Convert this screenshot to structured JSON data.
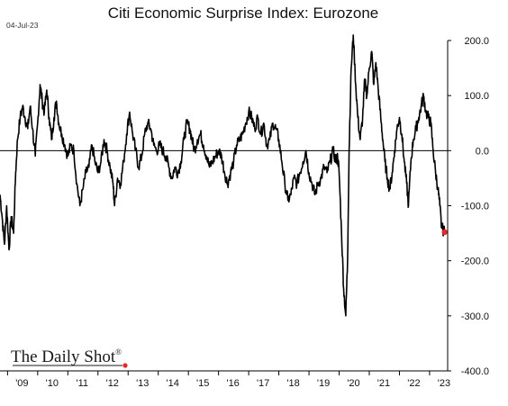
{
  "header": {
    "title": "Citi Economic Surprise Index: Eurozone",
    "date": "04-Jul-23"
  },
  "branding": {
    "logo_text": "The Daily Shot",
    "registered_mark": "®",
    "dot_color": "#e8262b"
  },
  "colors": {
    "line": "#000000",
    "zero_line": "#000000",
    "last_point": "#e8262b",
    "axis": "#000000"
  },
  "chart_data": {
    "type": "line",
    "title": "Citi Economic Surprise Index: Eurozone",
    "xlabel": "",
    "ylabel": "",
    "ylim": [
      -400,
      200
    ],
    "xlim": [
      2008.75,
      2023.6
    ],
    "y_ticks": [
      {
        "value": 200,
        "label": "200.0"
      },
      {
        "value": 100,
        "label": "100.0"
      },
      {
        "value": 0,
        "label": "0.0"
      },
      {
        "value": -100,
        "label": "-100.0"
      },
      {
        "value": -200,
        "label": "-200.0"
      },
      {
        "value": -300,
        "label": "-300.0"
      },
      {
        "value": -400,
        "label": "-400.0"
      }
    ],
    "x_ticks": [
      {
        "value": 2009,
        "label": "'09"
      },
      {
        "value": 2010,
        "label": "'10"
      },
      {
        "value": 2011,
        "label": "'11"
      },
      {
        "value": 2012,
        "label": "'12"
      },
      {
        "value": 2013,
        "label": "'13"
      },
      {
        "value": 2014,
        "label": "'14"
      },
      {
        "value": 2015,
        "label": "'15"
      },
      {
        "value": 2016,
        "label": "'16"
      },
      {
        "value": 2017,
        "label": "'17"
      },
      {
        "value": 2018,
        "label": "'18"
      },
      {
        "value": 2019,
        "label": "'19"
      },
      {
        "value": 2020,
        "label": "'20"
      },
      {
        "value": 2021,
        "label": "'21"
      },
      {
        "value": 2022,
        "label": "'22"
      },
      {
        "value": 2023,
        "label": "'23"
      }
    ],
    "grid": false,
    "zero_line": true,
    "series": [
      {
        "name": "",
        "points": [
          [
            2008.75,
            -80
          ],
          [
            2008.82,
            -120
          ],
          [
            2008.9,
            -170
          ],
          [
            2008.97,
            -100
          ],
          [
            2009.05,
            -180
          ],
          [
            2009.12,
            -120
          ],
          [
            2009.2,
            -150
          ],
          [
            2009.27,
            -40
          ],
          [
            2009.33,
            20
          ],
          [
            2009.42,
            60
          ],
          [
            2009.5,
            80
          ],
          [
            2009.58,
            60
          ],
          [
            2009.67,
            40
          ],
          [
            2009.75,
            80
          ],
          [
            2009.83,
            40
          ],
          [
            2009.92,
            -10
          ],
          [
            2010.0,
            50
          ],
          [
            2010.08,
            120
          ],
          [
            2010.15,
            90
          ],
          [
            2010.22,
            70
          ],
          [
            2010.3,
            110
          ],
          [
            2010.38,
            60
          ],
          [
            2010.46,
            20
          ],
          [
            2010.54,
            60
          ],
          [
            2010.62,
            90
          ],
          [
            2010.7,
            50
          ],
          [
            2010.8,
            30
          ],
          [
            2010.9,
            10
          ],
          [
            2011.0,
            -10
          ],
          [
            2011.1,
            10
          ],
          [
            2011.2,
            0
          ],
          [
            2011.3,
            -60
          ],
          [
            2011.4,
            -100
          ],
          [
            2011.5,
            -70
          ],
          [
            2011.6,
            -40
          ],
          [
            2011.7,
            -30
          ],
          [
            2011.8,
            10
          ],
          [
            2011.9,
            -20
          ],
          [
            2012.0,
            -40
          ],
          [
            2012.1,
            -20
          ],
          [
            2012.2,
            20
          ],
          [
            2012.3,
            0
          ],
          [
            2012.4,
            -30
          ],
          [
            2012.5,
            -60
          ],
          [
            2012.55,
            -100
          ],
          [
            2012.65,
            -50
          ],
          [
            2012.75,
            -60
          ],
          [
            2012.85,
            -20
          ],
          [
            2012.95,
            30
          ],
          [
            2013.05,
            70
          ],
          [
            2013.15,
            30
          ],
          [
            2013.25,
            0
          ],
          [
            2013.35,
            -30
          ],
          [
            2013.45,
            -10
          ],
          [
            2013.55,
            30
          ],
          [
            2013.65,
            50
          ],
          [
            2013.75,
            40
          ],
          [
            2013.85,
            10
          ],
          [
            2013.95,
            0
          ],
          [
            2014.05,
            10
          ],
          [
            2014.15,
            0
          ],
          [
            2014.25,
            -10
          ],
          [
            2014.35,
            -30
          ],
          [
            2014.45,
            -50
          ],
          [
            2014.55,
            -30
          ],
          [
            2014.65,
            -40
          ],
          [
            2014.75,
            -20
          ],
          [
            2014.85,
            20
          ],
          [
            2014.95,
            50
          ],
          [
            2015.05,
            40
          ],
          [
            2015.12,
            20
          ],
          [
            2015.2,
            0
          ],
          [
            2015.3,
            20
          ],
          [
            2015.4,
            30
          ],
          [
            2015.5,
            10
          ],
          [
            2015.6,
            -10
          ],
          [
            2015.7,
            -30
          ],
          [
            2015.8,
            -20
          ],
          [
            2015.9,
            -10
          ],
          [
            2016.0,
            0
          ],
          [
            2016.1,
            -10
          ],
          [
            2016.2,
            -40
          ],
          [
            2016.3,
            -60
          ],
          [
            2016.4,
            -40
          ],
          [
            2016.5,
            -20
          ],
          [
            2016.6,
            10
          ],
          [
            2016.7,
            20
          ],
          [
            2016.8,
            30
          ],
          [
            2016.9,
            50
          ],
          [
            2017.0,
            70
          ],
          [
            2017.1,
            60
          ],
          [
            2017.2,
            40
          ],
          [
            2017.3,
            60
          ],
          [
            2017.4,
            30
          ],
          [
            2017.5,
            50
          ],
          [
            2017.6,
            10
          ],
          [
            2017.7,
            20
          ],
          [
            2017.8,
            50
          ],
          [
            2017.9,
            40
          ],
          [
            2018.0,
            20
          ],
          [
            2018.1,
            -20
          ],
          [
            2018.2,
            -60
          ],
          [
            2018.3,
            -90
          ],
          [
            2018.4,
            -80
          ],
          [
            2018.5,
            -50
          ],
          [
            2018.6,
            -60
          ],
          [
            2018.7,
            -40
          ],
          [
            2018.8,
            -20
          ],
          [
            2018.9,
            0
          ],
          [
            2019.0,
            -40
          ],
          [
            2019.1,
            -60
          ],
          [
            2019.2,
            -80
          ],
          [
            2019.3,
            -60
          ],
          [
            2019.4,
            -50
          ],
          [
            2019.5,
            -30
          ],
          [
            2019.6,
            -40
          ],
          [
            2019.7,
            -20
          ],
          [
            2019.8,
            0
          ],
          [
            2019.9,
            -20
          ],
          [
            2019.95,
            -10
          ],
          [
            2020.0,
            -40
          ],
          [
            2020.08,
            -150
          ],
          [
            2020.15,
            -250
          ],
          [
            2020.22,
            -300
          ],
          [
            2020.28,
            -200
          ],
          [
            2020.33,
            0
          ],
          [
            2020.4,
            150
          ],
          [
            2020.47,
            210
          ],
          [
            2020.55,
            120
          ],
          [
            2020.62,
            60
          ],
          [
            2020.7,
            20
          ],
          [
            2020.78,
            60
          ],
          [
            2020.85,
            130
          ],
          [
            2020.92,
            100
          ],
          [
            2021.0,
            150
          ],
          [
            2021.08,
            180
          ],
          [
            2021.15,
            120
          ],
          [
            2021.22,
            160
          ],
          [
            2021.3,
            110
          ],
          [
            2021.38,
            60
          ],
          [
            2021.45,
            20
          ],
          [
            2021.52,
            -20
          ],
          [
            2021.6,
            -50
          ],
          [
            2021.68,
            -70
          ],
          [
            2021.76,
            -40
          ],
          [
            2021.84,
            0
          ],
          [
            2021.92,
            40
          ],
          [
            2022.0,
            60
          ],
          [
            2022.08,
            30
          ],
          [
            2022.16,
            -20
          ],
          [
            2022.24,
            -60
          ],
          [
            2022.3,
            -100
          ],
          [
            2022.38,
            -20
          ],
          [
            2022.46,
            20
          ],
          [
            2022.55,
            40
          ],
          [
            2022.64,
            60
          ],
          [
            2022.72,
            80
          ],
          [
            2022.8,
            100
          ],
          [
            2022.88,
            70
          ],
          [
            2022.96,
            60
          ],
          [
            2023.04,
            50
          ],
          [
            2023.12,
            0
          ],
          [
            2023.2,
            -40
          ],
          [
            2023.28,
            -70
          ],
          [
            2023.34,
            -100
          ],
          [
            2023.4,
            -140
          ],
          [
            2023.5,
            -148
          ]
        ]
      }
    ],
    "last_point": {
      "x": 2023.5,
      "y": -148
    }
  }
}
